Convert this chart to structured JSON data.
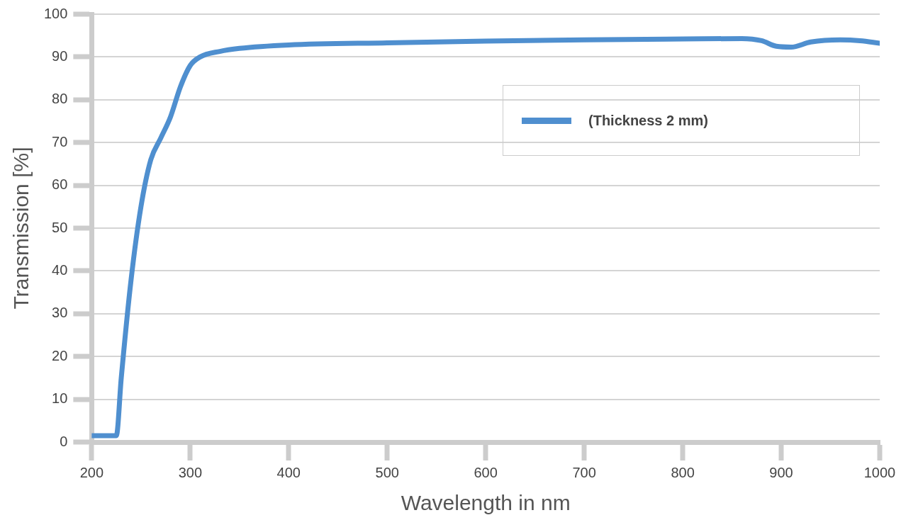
{
  "chart_data": {
    "type": "line",
    "xlabel": "Wavelength in nm",
    "ylabel": "Transmission [%]",
    "series": [
      {
        "name": "(Thickness 2 mm)",
        "color": "#4f8fcf",
        "x": [
          200,
          225,
          230,
          240,
          250,
          260,
          270,
          280,
          290,
          300,
          310,
          330,
          350,
          400,
          500,
          600,
          700,
          800,
          860,
          880,
          895,
          910,
          930,
          960,
          980,
          1000
        ],
        "values": [
          1.5,
          1.5,
          15,
          38,
          55,
          66,
          71,
          76,
          83,
          88,
          90,
          91.3,
          92,
          92.8,
          93.3,
          93.7,
          94,
          94.2,
          94.3,
          93.8,
          92.5,
          92.3,
          93.5,
          94,
          93.8,
          93.2
        ]
      }
    ],
    "xlim": [
      200,
      1000
    ],
    "xticks": [
      200,
      300,
      400,
      500,
      600,
      700,
      800,
      900,
      1000
    ],
    "ylim": [
      0,
      100
    ],
    "yticks": [
      0,
      10,
      20,
      30,
      40,
      50,
      60,
      70,
      80,
      90,
      100
    ],
    "grid": "y",
    "legend": "top right",
    "marker": "none",
    "line_style": "solid"
  }
}
